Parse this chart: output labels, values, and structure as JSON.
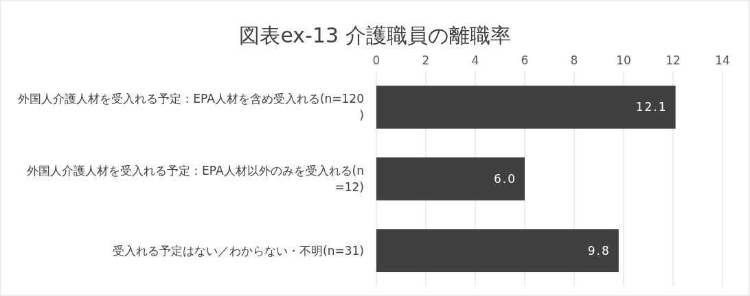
{
  "chart_data": {
    "type": "bar",
    "orientation": "horizontal",
    "title": "図表ex-13 介護職員の離職率",
    "categories": [
      "外国人介護人材を受入れる予定：EPA人材を含め受入れる(n=120)",
      "外国人介護人材を受入れる予定：EPA人材以外のみを受入れる(n=12)",
      "受入れる予定はない／わからない・不明(n=31)"
    ],
    "values": [
      12.1,
      6.0,
      9.8
    ],
    "value_labels": [
      "12.1",
      "6.0",
      "9.8"
    ],
    "color": "#404040",
    "xlim": [
      0,
      14
    ],
    "xticks": [
      0,
      2,
      4,
      6,
      8,
      10,
      12,
      14
    ],
    "grid": "x"
  }
}
